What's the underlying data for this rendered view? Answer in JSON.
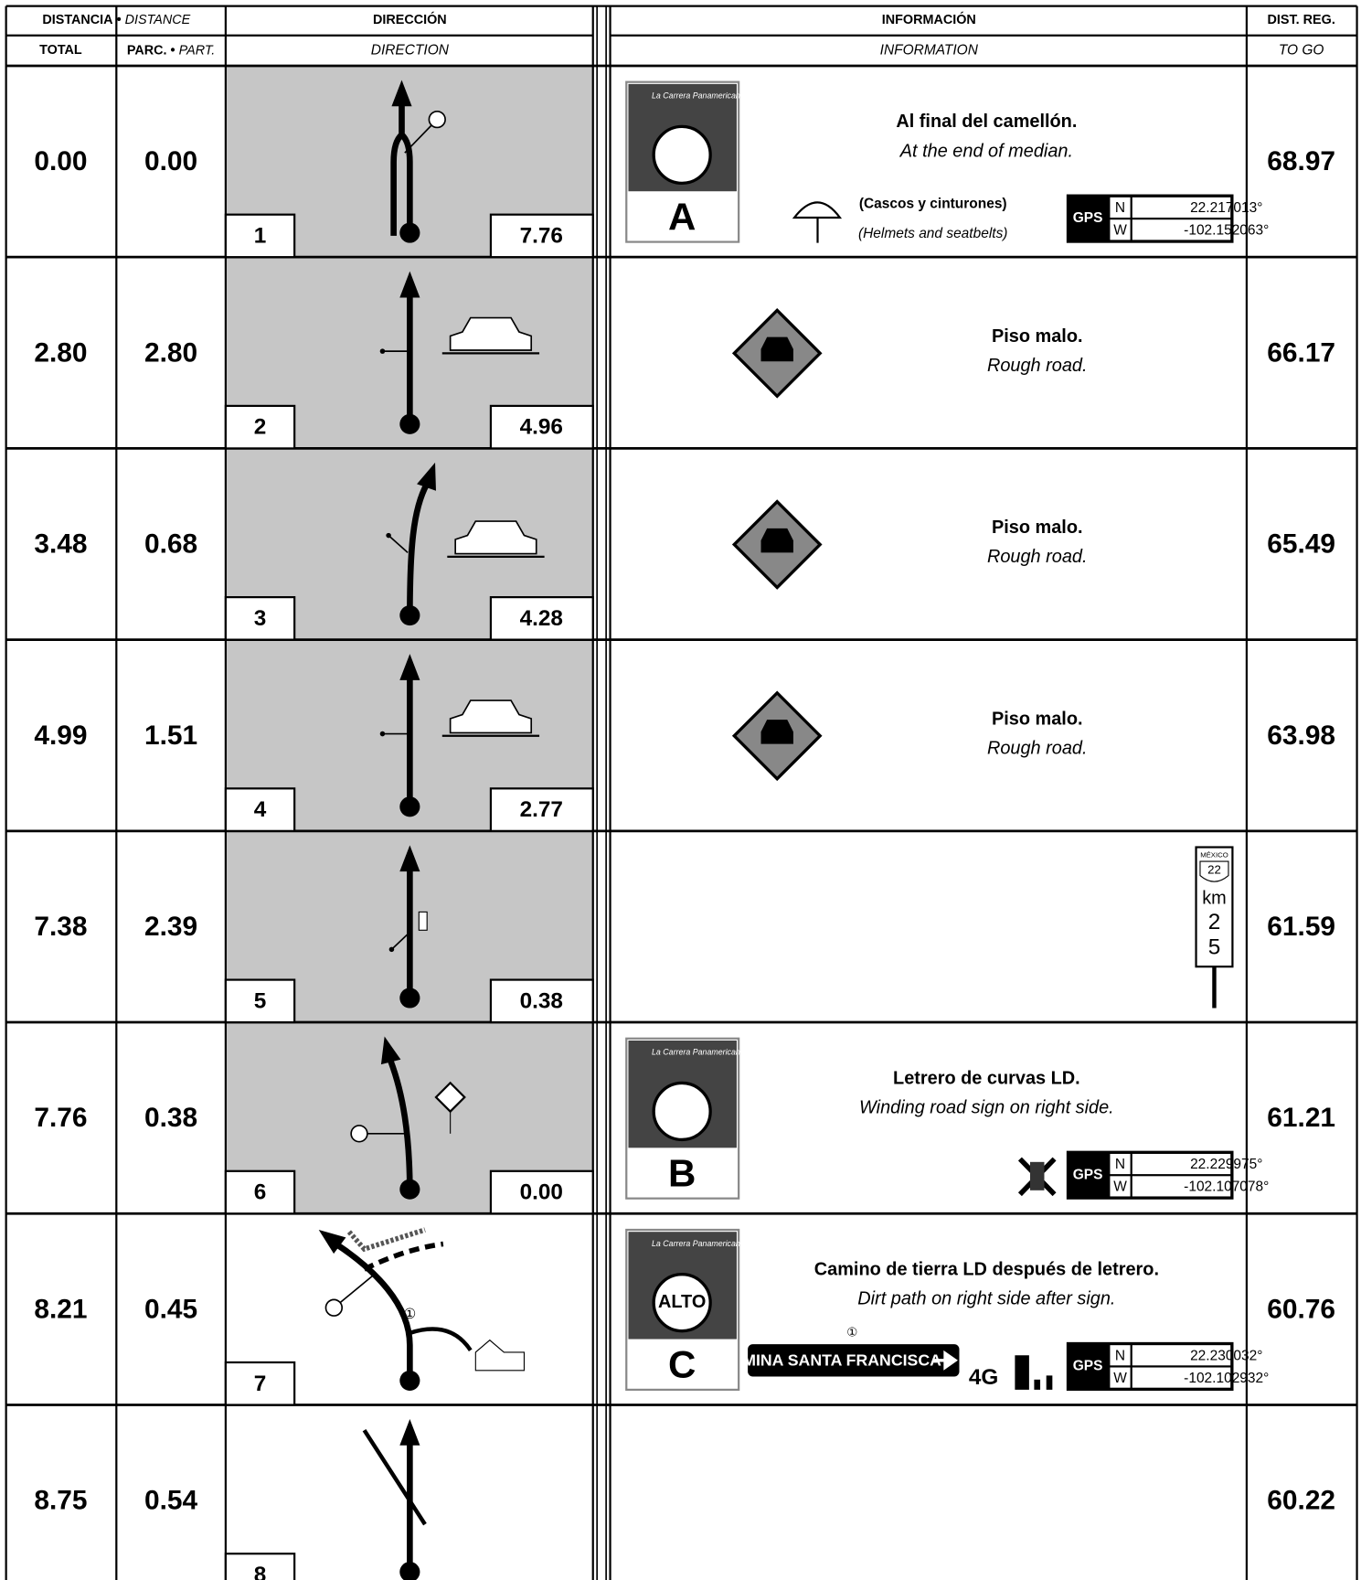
{
  "header": {
    "distance": "DISTANCIA",
    "separator": "•",
    "distance_en": "DISTANCE",
    "total": "TOTAL",
    "partial": "PARC.",
    "partial_en": "PART.",
    "direction": "DIRECCIÓN",
    "direction_en": "DIRECTION",
    "information": "INFORMACIÓN",
    "information_en": "INFORMATION",
    "dist_reg": "DIST. REG.",
    "to_go": "TO GO"
  },
  "logo": "La Carrera Panamericana",
  "rows": [
    {
      "total": "0.00",
      "partial": "0.00",
      "step": "1",
      "next": "7.76",
      "to_go": "68.97",
      "title": "Al final del camellón.",
      "subtitle": "At the end of median.",
      "marker": "A",
      "note": "(Cascos y cinturones)",
      "note_en": "(Helmets and seatbelts)",
      "gps": {
        "label": "GPS",
        "n_label": "N",
        "n": "22.217013°",
        "w_label": "W",
        "w": "-102.152063°"
      }
    },
    {
      "total": "2.80",
      "partial": "2.80",
      "step": "2",
      "next": "4.96",
      "to_go": "66.17",
      "title": "Piso malo.",
      "subtitle": "Rough road."
    },
    {
      "total": "3.48",
      "partial": "0.68",
      "step": "3",
      "next": "4.28",
      "to_go": "65.49",
      "title": "Piso malo.",
      "subtitle": "Rough road."
    },
    {
      "total": "4.99",
      "partial": "1.51",
      "step": "4",
      "next": "2.77",
      "to_go": "63.98",
      "title": "Piso malo.",
      "subtitle": "Rough road."
    },
    {
      "total": "7.38",
      "partial": "2.39",
      "step": "5",
      "next": "0.38",
      "to_go": "61.59",
      "km_sign": {
        "country": "MÉXICO",
        "road": "22",
        "unit": "km",
        "digit1": "2",
        "digit2": "5"
      }
    },
    {
      "total": "7.76",
      "partial": "0.38",
      "step": "6",
      "next": "0.00",
      "to_go": "61.21",
      "title": "Letrero de curvas LD.",
      "subtitle": "Winding road sign on right side.",
      "marker": "B",
      "gps": {
        "label": "GPS",
        "n_label": "N",
        "n": "22.229975°",
        "w_label": "W",
        "w": "-102.107078°"
      }
    },
    {
      "total": "8.21",
      "partial": "0.45",
      "step": "7",
      "to_go": "60.76",
      "title": "Camino de tierra LD después de letrero.",
      "subtitle": "Dirt path on right side after sign.",
      "marker": "C",
      "stop": "ALTO",
      "ref": "①",
      "sign": "MINA SANTA FRANCISCA",
      "network": "4G",
      "gps": {
        "label": "GPS",
        "n_label": "N",
        "n": "22.230032°",
        "w_label": "W",
        "w": "-102.102932°"
      }
    },
    {
      "total": "8.75",
      "partial": "0.54",
      "step": "8",
      "to_go": "60.22"
    }
  ]
}
